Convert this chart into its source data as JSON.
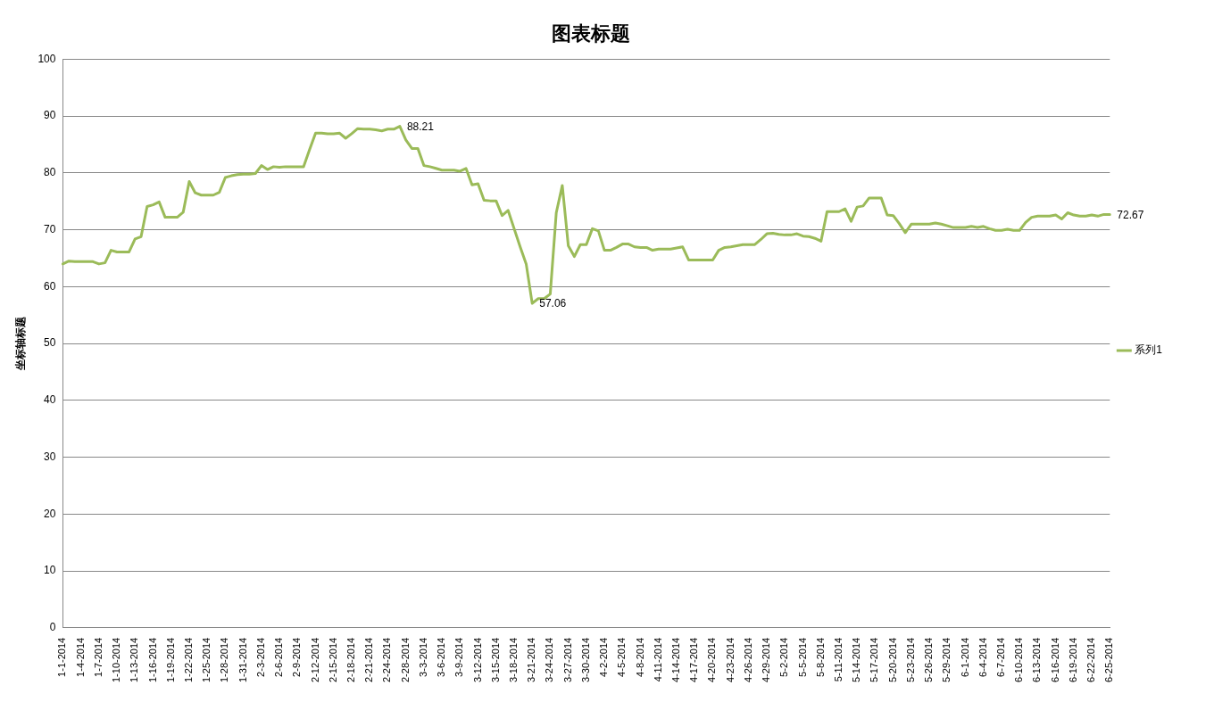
{
  "chart_data": {
    "type": "line",
    "title": "图表标题",
    "ylabel": "坐标轴标题",
    "categories": [
      "1-1-2014",
      null,
      null,
      "1-4-2014",
      null,
      null,
      "1-7-2014",
      null,
      null,
      "1-10-2014",
      null,
      null,
      "1-13-2014",
      null,
      null,
      "1-16-2014",
      null,
      null,
      "1-19-2014",
      null,
      null,
      "1-22-2014",
      null,
      null,
      "1-25-2014",
      null,
      null,
      "1-28-2014",
      null,
      null,
      "1-31-2014",
      null,
      null,
      "2-3-2014",
      null,
      null,
      "2-6-2014",
      null,
      null,
      "2-9-2014",
      null,
      null,
      "2-12-2014",
      null,
      null,
      "2-15-2014",
      null,
      null,
      "2-18-2014",
      null,
      null,
      "2-21-2014",
      null,
      null,
      "2-24-2014",
      null,
      null,
      "2-28-2014",
      null,
      null,
      "3-3-2014",
      null,
      null,
      "3-6-2014",
      null,
      null,
      "3-9-2014",
      null,
      null,
      "3-12-2014",
      null,
      null,
      "3-15-2014",
      null,
      null,
      "3-18-2014",
      null,
      null,
      "3-21-2014",
      null,
      null,
      "3-24-2014",
      null,
      null,
      "3-27-2014",
      null,
      null,
      "3-30-2014",
      null,
      null,
      "4-2-2014",
      null,
      null,
      "4-5-2014",
      null,
      null,
      "4-8-2014",
      null,
      null,
      "4-11-2014",
      null,
      null,
      "4-14-2014",
      null,
      null,
      "4-17-2014",
      null,
      null,
      "4-20-2014",
      null,
      null,
      "4-23-2014",
      null,
      null,
      "4-26-2014",
      null,
      null,
      "4-29-2014",
      null,
      null,
      "5-2-2014",
      null,
      null,
      "5-5-2014",
      null,
      null,
      "5-8-2014",
      null,
      null,
      "5-11-2014",
      null,
      null,
      "5-14-2014",
      null,
      null,
      "5-17-2014",
      null,
      null,
      "5-20-2014",
      null,
      null,
      "5-23-2014",
      null,
      null,
      "5-26-2014",
      null,
      null,
      "5-29-2014",
      null,
      null,
      "6-1-2014",
      null,
      null,
      "6-4-2014",
      null,
      null,
      "6-7-2014",
      null,
      null,
      "6-10-2014",
      null,
      null,
      "6-13-2014",
      null,
      null,
      "6-16-2014",
      null,
      null,
      "6-19-2014",
      null,
      null,
      "6-22-2014",
      null,
      null,
      "6-25-2014"
    ],
    "series": [
      {
        "name": "系列1",
        "color": "#9bbb59",
        "values": [
          64.0,
          64.5,
          64.4,
          64.4,
          64.4,
          64.4,
          64.0,
          64.2,
          66.4,
          66.1,
          66.1,
          66.1,
          68.4,
          68.8,
          74.1,
          74.4,
          74.9,
          72.2,
          72.2,
          72.2,
          73.1,
          78.5,
          76.5,
          76.1,
          76.1,
          76.1,
          76.6,
          79.2,
          79.5,
          79.7,
          79.8,
          79.8,
          79.9,
          81.3,
          80.6,
          81.1,
          81.0,
          81.1,
          81.1,
          81.1,
          81.1,
          84.1,
          87.0,
          87.0,
          86.9,
          86.9,
          87.0,
          86.1,
          86.9,
          87.8,
          87.7,
          87.7,
          87.6,
          87.4,
          87.7,
          87.7,
          88.21,
          85.8,
          84.3,
          84.3,
          81.3,
          81.1,
          80.8,
          80.5,
          80.5,
          80.5,
          80.3,
          80.8,
          77.9,
          78.1,
          75.2,
          75.1,
          75.1,
          72.5,
          73.4,
          70.2,
          67.0,
          64.0,
          57.06,
          57.9,
          57.9,
          58.7,
          73.0,
          77.8,
          67.2,
          65.3,
          67.4,
          67.4,
          70.2,
          69.8,
          66.4,
          66.4,
          66.9,
          67.5,
          67.5,
          67.0,
          66.9,
          66.9,
          66.4,
          66.6,
          66.6,
          66.6,
          66.8,
          67.0,
          64.7,
          64.7,
          64.7,
          64.7,
          64.7,
          66.4,
          66.9,
          67.0,
          67.2,
          67.4,
          67.4,
          67.4,
          68.3,
          69.3,
          69.4,
          69.2,
          69.1,
          69.1,
          69.3,
          68.9,
          68.8,
          68.5,
          68.0,
          73.2,
          73.2,
          73.2,
          73.7,
          71.5,
          74.0,
          74.2,
          75.6,
          75.6,
          75.6,
          72.6,
          72.5,
          71.1,
          69.5,
          71.0,
          71.0,
          71.0,
          71.0,
          71.2,
          71.0,
          70.7,
          70.4,
          70.4,
          70.4,
          70.6,
          70.4,
          70.6,
          70.2,
          69.9,
          69.9,
          70.1,
          69.9,
          69.9,
          71.3,
          72.2,
          72.4,
          72.4,
          72.4,
          72.6,
          71.9,
          73.0,
          72.6,
          72.4,
          72.4,
          72.6,
          72.4,
          72.7,
          72.67
        ],
        "value_labels": [
          null,
          null,
          null,
          null,
          null,
          null,
          null,
          null,
          null,
          null,
          null,
          null,
          null,
          null,
          null,
          null,
          null,
          null,
          null,
          null,
          null,
          null,
          null,
          null,
          null,
          null,
          null,
          null,
          null,
          null,
          null,
          null,
          null,
          null,
          null,
          null,
          null,
          null,
          null,
          null,
          null,
          null,
          null,
          null,
          null,
          null,
          null,
          null,
          null,
          null,
          null,
          null,
          null,
          null,
          null,
          null,
          "88.21",
          null,
          null,
          null,
          null,
          null,
          null,
          null,
          null,
          null,
          null,
          null,
          null,
          null,
          null,
          null,
          null,
          null,
          null,
          null,
          null,
          null,
          "57.06",
          null,
          null,
          null,
          null,
          null,
          null,
          null,
          null,
          null,
          null,
          null,
          null,
          null,
          null,
          null,
          null,
          null,
          null,
          null,
          null,
          null,
          null,
          null,
          null,
          null,
          null,
          null,
          null,
          null,
          null,
          null,
          null,
          null,
          null,
          null,
          null,
          null,
          null,
          null,
          null,
          null,
          null,
          null,
          null,
          null,
          null,
          null,
          null,
          null,
          null,
          null,
          null,
          null,
          null,
          null,
          null,
          null,
          null,
          null,
          null,
          null,
          null,
          null,
          null,
          null,
          null,
          null,
          null,
          null,
          null,
          null,
          null,
          null,
          null,
          null,
          null,
          null,
          null,
          null,
          null,
          null,
          null,
          null,
          null,
          null,
          null,
          null,
          null,
          null,
          null,
          null,
          null,
          null,
          null,
          null,
          "72.67"
        ]
      }
    ],
    "ylim": [
      0,
      100
    ],
    "yticks": [
      0,
      10,
      20,
      30,
      40,
      50,
      60,
      70,
      80,
      90,
      100
    ],
    "grid": "y",
    "legend": "right",
    "marker": "none"
  }
}
